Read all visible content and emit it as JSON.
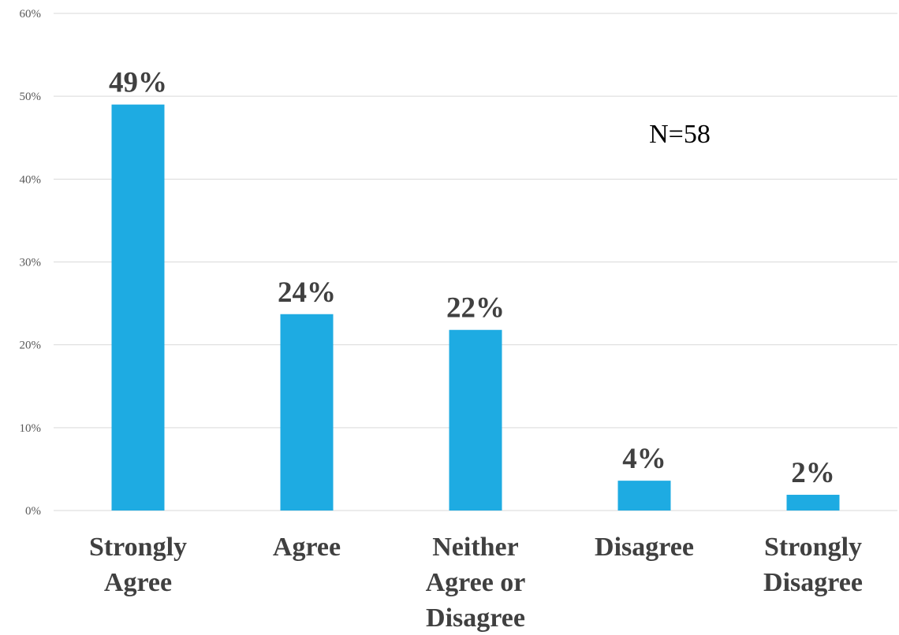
{
  "chart_data": {
    "type": "bar",
    "categories": [
      [
        "Strongly",
        "Agree"
      ],
      [
        "Agree"
      ],
      [
        "Neither",
        "Agree or",
        "Disagree"
      ],
      [
        "Disagree"
      ],
      [
        "Strongly",
        "Disagree"
      ]
    ],
    "values": [
      49,
      24,
      22,
      4,
      2
    ],
    "bar_heights": [
      49,
      23.7,
      21.8,
      3.6,
      1.9
    ],
    "data_labels": [
      "49%",
      "24%",
      "22%",
      "4%",
      "2%"
    ],
    "y_ticks": [
      "0%",
      "10%",
      "20%",
      "30%",
      "40%",
      "50%",
      "60%"
    ],
    "ylim": [
      0,
      60
    ],
    "grid": true,
    "legend": "none",
    "annotation": "N=58",
    "bar_color": "#1eabe2",
    "title": "",
    "xlabel": "",
    "ylabel": ""
  }
}
